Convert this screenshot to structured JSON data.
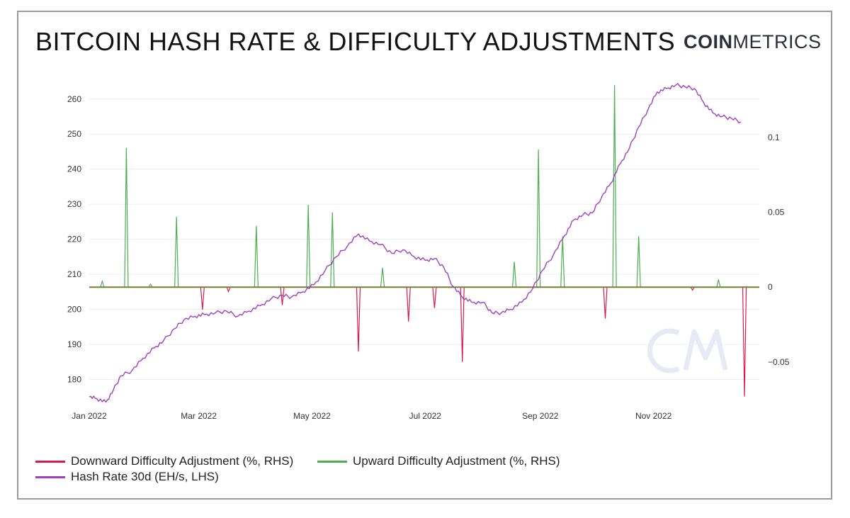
{
  "header": {
    "title": "BITCOIN HASH RATE & DIFFICULTY ADJUSTMENTS",
    "logo_bold": "COIN",
    "logo_light": "METRICS"
  },
  "colors": {
    "hash_rate": "#a23fbf",
    "upward": "#4caf50",
    "downward": "#d81b4e",
    "zero_line": "#7a7a3a",
    "grid": "#ececec"
  },
  "chart_data": {
    "type": "line",
    "title": "BITCOIN HASH RATE & DIFFICULTY ADJUSTMENTS",
    "grid": true,
    "legend_position": "bottom-left",
    "x_axis": {
      "start": "2022-01-01",
      "end": "2022-12-28",
      "ticks": [
        {
          "label": "Jan 2022",
          "date": "2022-01-01"
        },
        {
          "label": "Mar 2022",
          "date": "2022-03-01"
        },
        {
          "label": "May 2022",
          "date": "2022-05-01"
        },
        {
          "label": "Jul 2022",
          "date": "2022-07-01"
        },
        {
          "label": "Sep 2022",
          "date": "2022-09-01"
        },
        {
          "label": "Nov 2022",
          "date": "2022-11-01"
        }
      ]
    },
    "y_left": {
      "range": [
        173,
        264
      ],
      "ticks": [
        180,
        190,
        200,
        210,
        220,
        230,
        240,
        250,
        260
      ]
    },
    "y_right": {
      "range": [
        -0.078,
        0.135
      ],
      "ticks": [
        {
          "v": -0.05,
          "label": "−0.05"
        },
        {
          "v": 0,
          "label": "0"
        },
        {
          "v": 0.05,
          "label": "0.05"
        },
        {
          "v": 0.1,
          "label": "0.1"
        }
      ]
    },
    "series": [
      {
        "name": "Hash Rate 30d (EH/s, LHS)",
        "axis": "left",
        "points": [
          [
            "2022-01-01",
            175
          ],
          [
            "2022-01-05",
            174.5
          ],
          [
            "2022-01-10",
            173.5
          ],
          [
            "2022-01-14",
            177
          ],
          [
            "2022-01-18",
            181
          ],
          [
            "2022-01-24",
            182.5
          ],
          [
            "2022-01-30",
            186
          ],
          [
            "2022-02-05",
            189
          ],
          [
            "2022-02-10",
            191
          ],
          [
            "2022-02-16",
            194.5
          ],
          [
            "2022-02-21",
            197
          ],
          [
            "2022-02-27",
            198
          ],
          [
            "2022-03-04",
            198.5
          ],
          [
            "2022-03-10",
            199
          ],
          [
            "2022-03-16",
            199.5
          ],
          [
            "2022-03-22",
            198
          ],
          [
            "2022-03-28",
            199.5
          ],
          [
            "2022-04-03",
            201
          ],
          [
            "2022-04-09",
            203
          ],
          [
            "2022-04-15",
            204
          ],
          [
            "2022-04-20",
            203.5
          ],
          [
            "2022-04-26",
            205
          ],
          [
            "2022-05-02",
            207
          ],
          [
            "2022-05-08",
            211
          ],
          [
            "2022-05-14",
            215
          ],
          [
            "2022-05-20",
            218
          ],
          [
            "2022-05-26",
            221.5
          ],
          [
            "2022-06-01",
            219.5
          ],
          [
            "2022-06-07",
            218.5
          ],
          [
            "2022-06-13",
            216
          ],
          [
            "2022-06-19",
            217
          ],
          [
            "2022-06-25",
            215
          ],
          [
            "2022-07-01",
            214
          ],
          [
            "2022-07-06",
            214.5
          ],
          [
            "2022-07-11",
            212
          ],
          [
            "2022-07-16",
            206.5
          ],
          [
            "2022-07-21",
            203.5
          ],
          [
            "2022-07-26",
            202
          ],
          [
            "2022-08-01",
            202
          ],
          [
            "2022-08-06",
            199
          ],
          [
            "2022-08-11",
            199
          ],
          [
            "2022-08-16",
            200
          ],
          [
            "2022-08-22",
            202
          ],
          [
            "2022-08-28",
            206
          ],
          [
            "2022-09-02",
            211
          ],
          [
            "2022-09-08",
            215.5
          ],
          [
            "2022-09-14",
            221
          ],
          [
            "2022-09-19",
            225.5
          ],
          [
            "2022-09-24",
            227
          ],
          [
            "2022-09-29",
            227.5
          ],
          [
            "2022-10-04",
            232
          ],
          [
            "2022-10-09",
            236
          ],
          [
            "2022-10-14",
            241.5
          ],
          [
            "2022-10-19",
            246
          ],
          [
            "2022-10-24",
            252
          ],
          [
            "2022-10-29",
            257
          ],
          [
            "2022-11-03",
            262
          ],
          [
            "2022-11-08",
            263
          ],
          [
            "2022-11-13",
            264
          ],
          [
            "2022-11-18",
            263.5
          ],
          [
            "2022-11-23",
            263
          ],
          [
            "2022-11-28",
            259
          ],
          [
            "2022-12-03",
            256
          ],
          [
            "2022-12-08",
            255
          ],
          [
            "2022-12-13",
            254.5
          ],
          [
            "2022-12-18",
            253.5
          ]
        ]
      },
      {
        "name": "Upward Difficulty Adjustment (%, RHS)",
        "axis": "right",
        "spikes": [
          [
            "2022-01-08",
            0.004
          ],
          [
            "2022-01-21",
            0.093
          ],
          [
            "2022-02-03",
            0.002
          ],
          [
            "2022-02-17",
            0.047
          ],
          [
            "2022-04-01",
            0.041
          ],
          [
            "2022-04-29",
            0.055
          ],
          [
            "2022-05-12",
            0.05
          ],
          [
            "2022-06-08",
            0.013
          ],
          [
            "2022-08-18",
            0.017
          ],
          [
            "2022-08-31",
            0.092
          ],
          [
            "2022-09-13",
            0.034
          ],
          [
            "2022-10-11",
            0.135
          ],
          [
            "2022-10-24",
            0.034
          ],
          [
            "2022-12-06",
            0.005
          ]
        ]
      },
      {
        "name": "Downward Difficulty Adjustment (%, RHS)",
        "axis": "right",
        "spikes": [
          [
            "2022-03-03",
            -0.015
          ],
          [
            "2022-03-17",
            -0.003
          ],
          [
            "2022-04-15",
            -0.012
          ],
          [
            "2022-05-26",
            -0.043
          ],
          [
            "2022-06-22",
            -0.023
          ],
          [
            "2022-07-06",
            -0.014
          ],
          [
            "2022-07-21",
            -0.05
          ],
          [
            "2022-10-06",
            -0.021
          ],
          [
            "2022-11-22",
            -0.002
          ],
          [
            "2022-12-20",
            -0.073
          ]
        ]
      }
    ]
  },
  "legend": [
    {
      "label": "Downward Difficulty Adjustment (%, RHS)",
      "color": "#d81b4e"
    },
    {
      "label": "Upward Difficulty Adjustment (%, RHS)",
      "color": "#4caf50"
    },
    {
      "label": "Hash Rate 30d (EH/s, LHS)",
      "color": "#a23fbf"
    }
  ]
}
